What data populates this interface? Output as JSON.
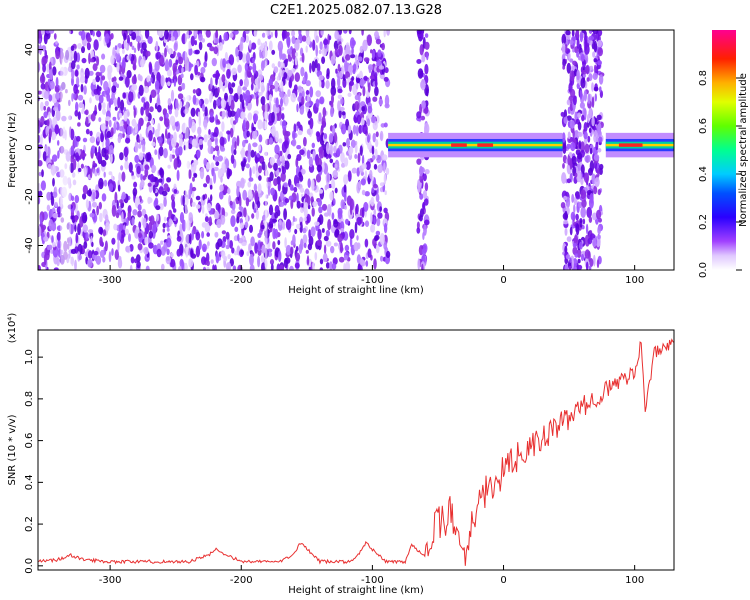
{
  "title": "C2E1.2025.082.07.13.G28",
  "chart_data": [
    {
      "type": "heatmap",
      "xlabel": "Height of straight line (km)",
      "ylabel": "Frequency (Hz)",
      "xlim": [
        -355,
        130
      ],
      "ylim": [
        -50,
        48
      ],
      "xticks": [
        -300,
        -200,
        -100,
        0,
        100
      ],
      "yticks": [
        -40,
        -20,
        0,
        20,
        40
      ],
      "colorbar": {
        "label": "Normalized spectral amplitude",
        "range": [
          0.0,
          1.0
        ],
        "ticks": [
          0.0,
          0.2,
          0.4,
          0.6,
          0.8
        ],
        "colormap": [
          "#ffffff",
          "#d9b3ff",
          "#8000ff",
          "#0000ff",
          "#00c0ff",
          "#00ff80",
          "#ffff00",
          "#ff8000",
          "#ff0000",
          "#ff00a0"
        ]
      },
      "features": {
        "noise_region_x": [
          -355,
          -88
        ],
        "signal_line_freq_hz": 1,
        "signal_segments_x": [
          [
            -88,
            45
          ],
          [
            78,
            130
          ]
        ],
        "noise_patch_x": [
          45,
          75
        ]
      },
      "grid": false
    },
    {
      "type": "line",
      "xlabel": "Height of straight line (km)",
      "ylabel": "SNR (10 * v/v)",
      "y_multiplier": "(x10⁴)",
      "xlim": [
        -355,
        130
      ],
      "ylim": [
        -0.02,
        1.13
      ],
      "xticks": [
        -300,
        -200,
        -100,
        0,
        100
      ],
      "yticks": [
        0.0,
        0.2,
        0.4,
        0.6,
        0.8,
        1.0
      ],
      "series": [
        {
          "color": "#e83030",
          "x": [
            -355,
            -340,
            -330,
            -320,
            -300,
            -280,
            -240,
            -225,
            -220,
            -200,
            -170,
            -160,
            -155,
            -140,
            -115,
            -110,
            -105,
            -90,
            -75,
            -70,
            -60,
            -50,
            -40,
            -30,
            -20,
            -10,
            0,
            10,
            20,
            40,
            60,
            80,
            100,
            105,
            108,
            115,
            130
          ],
          "y": [
            0.02,
            0.03,
            0.05,
            0.03,
            0.02,
            0.02,
            0.02,
            0.05,
            0.08,
            0.02,
            0.02,
            0.06,
            0.11,
            0.02,
            0.02,
            0.06,
            0.11,
            0.02,
            0.02,
            0.1,
            0.05,
            0.2,
            0.25,
            0.05,
            0.3,
            0.38,
            0.45,
            0.52,
            0.56,
            0.66,
            0.76,
            0.85,
            0.93,
            1.08,
            0.73,
            1.02,
            1.07
          ]
        }
      ],
      "grid": false
    }
  ]
}
